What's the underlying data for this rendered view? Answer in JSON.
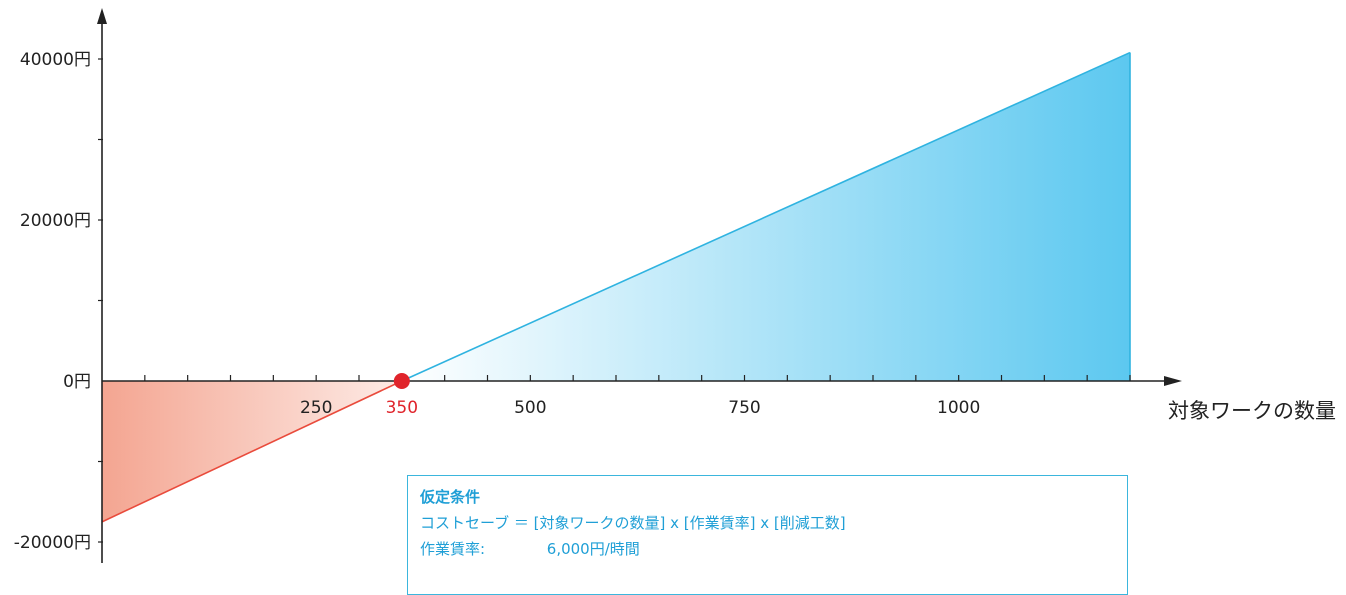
{
  "chart_data": {
    "type": "area",
    "x_axis_label": "対象ワークの数量",
    "x_ticks": [
      "250",
      "350",
      "500",
      "750",
      "1000"
    ],
    "y_ticks": [
      "40000円",
      "20000円",
      "0円",
      "-20000円"
    ],
    "xlim": [
      0,
      1200
    ],
    "ylim": [
      -20000,
      40000
    ],
    "series": [
      {
        "x": [
          0,
          350
        ],
        "y": [
          -17500,
          0
        ]
      },
      {
        "x": [
          350,
          1200
        ],
        "y": [
          0,
          40800
        ]
      }
    ],
    "break_even": {
      "x": 350,
      "label": "350"
    }
  },
  "colors": {
    "loss": "#e94b3c",
    "loss_fill": "#f4a591",
    "gain": "#2fb3e0",
    "gain_fill": "#5cc8f0",
    "marker": "#e0242b",
    "axis": "#222222"
  },
  "note": {
    "title": "仮定条件",
    "formula": "コストセーブ ＝ [対象ワークの数量] x [作業賃率] x [削減工数]",
    "rate_label": "作業賃率:",
    "rate_value": "6,000円/時間"
  }
}
